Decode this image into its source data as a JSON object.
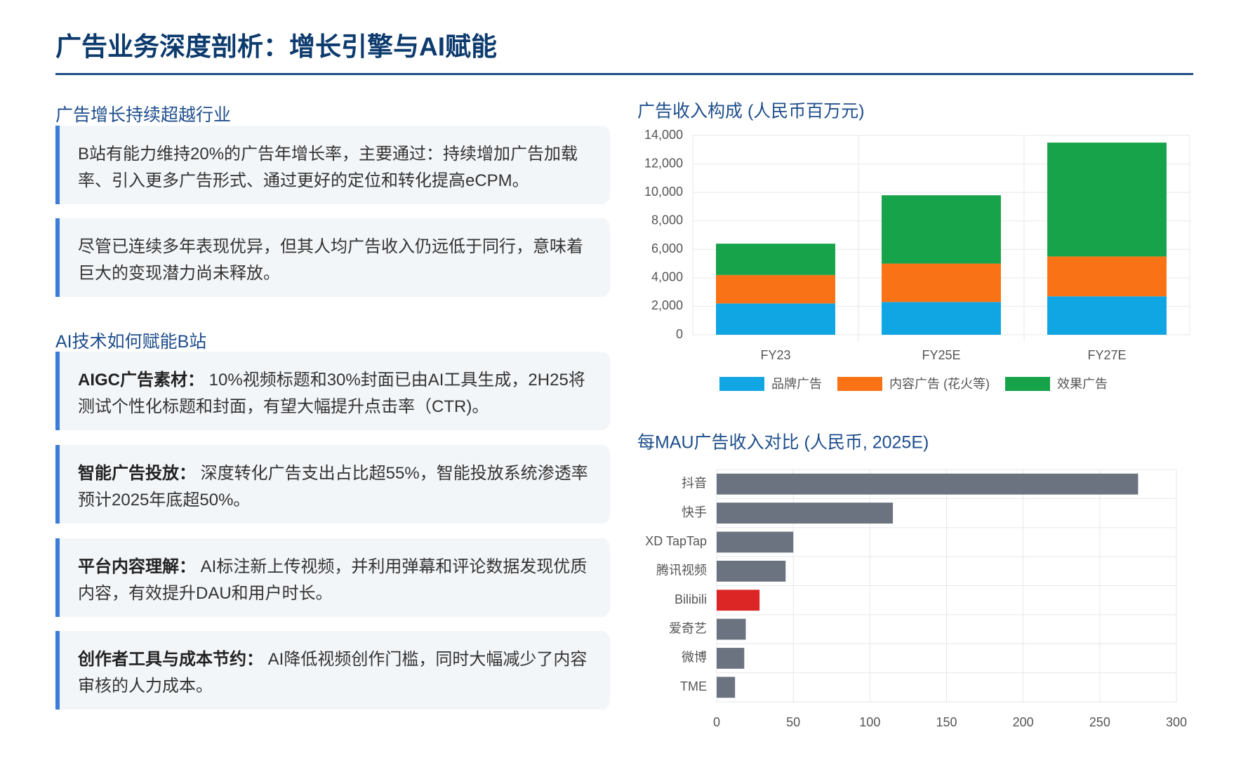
{
  "header": {
    "title": "广告业务深度剖析：增长引擎与AI赋能"
  },
  "sections": [
    {
      "title": "广告增长持续超越行业",
      "cards": [
        {
          "text": "B站有能力维持20%的广告年增长率，主要通过：持续增加广告加载率、引入更多广告形式、通过更好的定位和转化提高eCPM。"
        },
        {
          "text": "尽管已连续多年表现优异，但其人均广告收入仍远低于同行，意味着巨大的变现潜力尚未释放。"
        }
      ]
    },
    {
      "title": "AI技术如何赋能B站",
      "cards": [
        {
          "label": "AIGC广告素材：",
          "text": "10%视频标题和30%封面已由AI工具生成，2H25将测试个性化标题和封面，有望大幅提升点击率（CTR)。"
        },
        {
          "label": "智能广告投放：",
          "text": "深度转化广告支出占比超55%，智能投放系统渗透率预计2025年底超50%。"
        },
        {
          "label": "平台内容理解：",
          "text": "AI标注新上传视频，并利用弹幕和评论数据发现优质内容，有效提升DAU和用户时长。"
        },
        {
          "label": "创作者工具与成本节约：",
          "text": "AI降低视频创作门槛，同时大幅减少了内容审核的人力成本。"
        }
      ]
    }
  ],
  "chart_data": [
    {
      "type": "stacked-bar",
      "title": "广告收入构成 (人民币百万元)",
      "categories": [
        "FY23",
        "FY25E",
        "FY27E"
      ],
      "series": [
        {
          "name": "品牌广告",
          "color": "#10a5e3",
          "values": [
            2200,
            2300,
            2700
          ]
        },
        {
          "name": "内容广告 (花火等)",
          "color": "#f97316",
          "values": [
            2000,
            2700,
            2800
          ]
        },
        {
          "name": "效果广告",
          "color": "#16a34a",
          "values": [
            2200,
            4800,
            8000
          ]
        }
      ],
      "ylim": [
        0,
        14000
      ],
      "yticks": [
        0,
        {
          "value": 2000,
          "label": "2,000"
        },
        {
          "value": 4000,
          "label": "4,000"
        },
        {
          "value": 6000,
          "label": "6,000"
        },
        {
          "value": 8000,
          "label": "8,000"
        },
        {
          "value": 10000,
          "label": "10,000"
        },
        {
          "value": 12000,
          "label": "12,000"
        },
        {
          "value": 14000,
          "label": "14,000"
        }
      ],
      "grid": true,
      "legend": "bottom"
    },
    {
      "type": "horizontal-bar",
      "title": "每MAU广告收入对比 (人民币, 2025E)",
      "categories": [
        "抖音",
        "快手",
        "XD TapTap",
        "腾讯视频",
        "Bilibili",
        "爱奇艺",
        "微博",
        "TME"
      ],
      "values": [
        275,
        115,
        50,
        45,
        28,
        19,
        18,
        12
      ],
      "colors": [
        "#6b7280",
        "#6b7280",
        "#6b7280",
        "#6b7280",
        "#dc2626",
        "#6b7280",
        "#6b7280",
        "#6b7280"
      ],
      "xlim": [
        0,
        300
      ],
      "xticks": [
        0,
        50,
        100,
        150,
        200,
        250,
        300
      ],
      "grid": true
    }
  ]
}
